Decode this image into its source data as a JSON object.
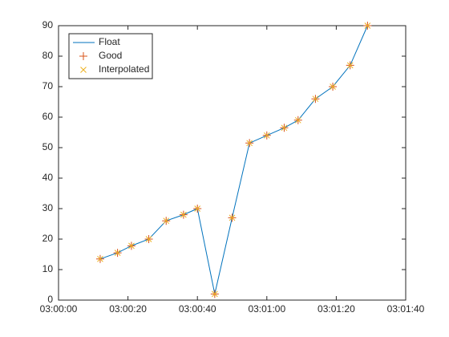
{
  "chart_data": {
    "type": "line",
    "x": [
      "03:00:12",
      "03:00:17",
      "03:00:21",
      "03:00:26",
      "03:00:31",
      "03:00:36",
      "03:00:40",
      "03:00:45",
      "03:00:50",
      "03:00:55",
      "03:01:00",
      "03:01:05",
      "03:01:09",
      "03:01:14",
      "03:01:19",
      "03:01:24",
      "03:01:29"
    ],
    "series": [
      {
        "name": "Float",
        "color": "#0072bd",
        "marker": "none",
        "values": [
          13.5,
          15.5,
          17.8,
          20,
          26,
          28,
          30,
          2,
          27,
          51.5,
          54,
          56.5,
          59,
          66,
          70,
          77,
          90
        ]
      },
      {
        "name": "Good",
        "color": "#d95319",
        "marker": "+",
        "values": [
          13.5,
          15.5,
          17.8,
          20,
          26,
          28,
          30,
          2,
          27,
          51.5,
          54,
          56.5,
          59,
          66,
          70,
          77,
          90
        ]
      },
      {
        "name": "Interpolated",
        "color": "#edb120",
        "marker": "x",
        "values": [
          13.5,
          15.5,
          17.8,
          20,
          26,
          28,
          30,
          2,
          27,
          51.5,
          54,
          56.5,
          59,
          66,
          70,
          77,
          90
        ]
      }
    ],
    "xlim": [
      "03:00:00",
      "03:01:40"
    ],
    "xticks": [
      "03:00:00",
      "03:00:20",
      "03:00:40",
      "03:01:00",
      "03:01:20",
      "03:01:40"
    ],
    "ylim": [
      0,
      90
    ],
    "yticks": [
      0,
      10,
      20,
      30,
      40,
      50,
      60,
      70,
      80,
      90
    ],
    "legend": "northwest"
  }
}
